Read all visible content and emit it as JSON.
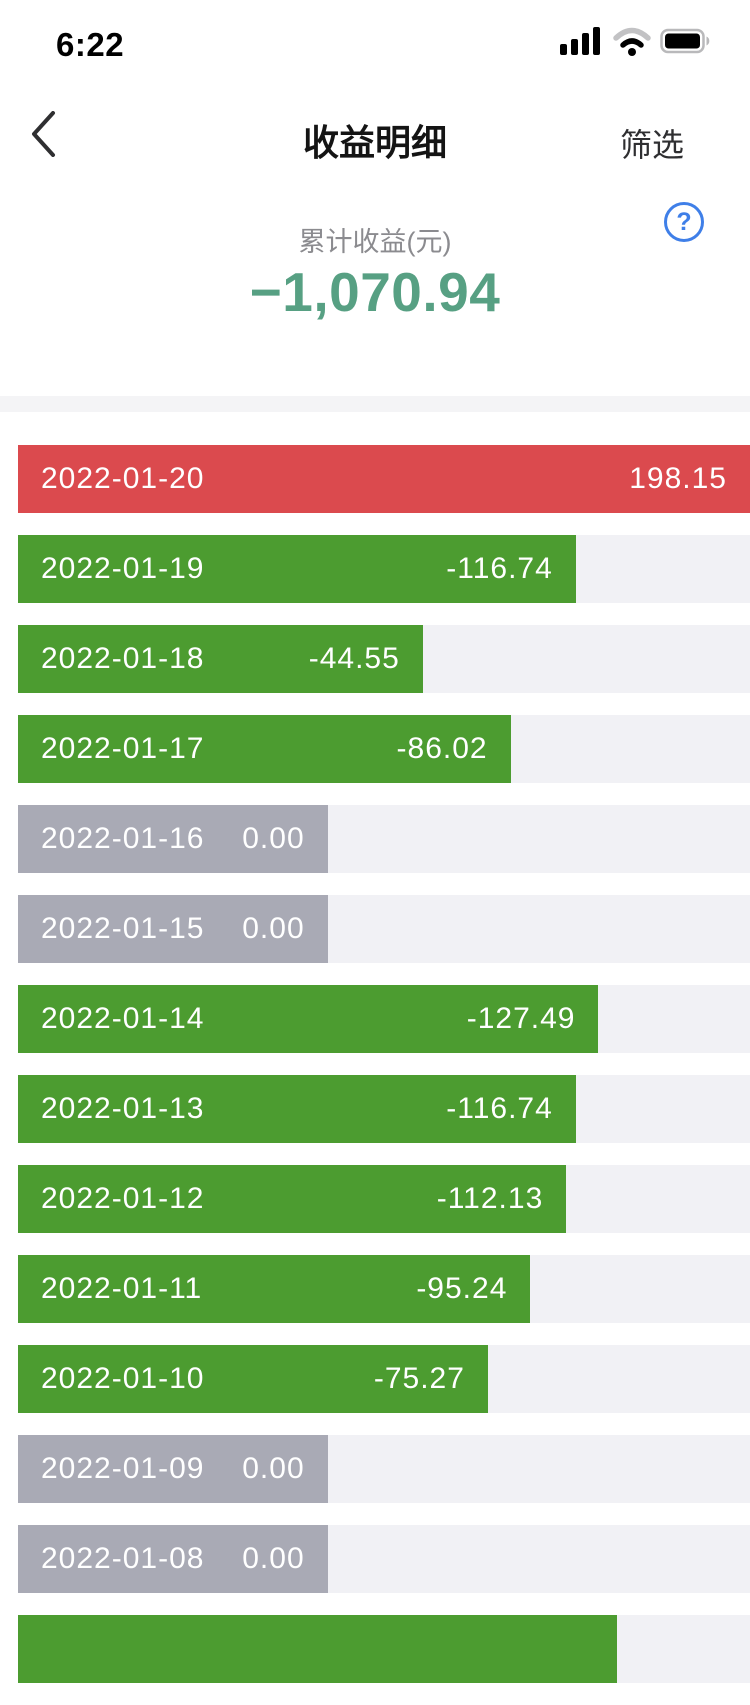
{
  "status_bar": {
    "time": "6:22"
  },
  "nav": {
    "title": "收益明细",
    "filter_label": "筛选"
  },
  "summary": {
    "label": "累计收益(元)",
    "total": "−1,070.94",
    "help_glyph": "?"
  },
  "colors": {
    "positive_bar": "#db4a4e",
    "negative_bar": "#4c9c30",
    "zero_bar": "#a9aab5",
    "bar_track": "#f1f1f5",
    "total_text": "#57a083",
    "help_icon": "#3f7fe8"
  },
  "chart_data": {
    "type": "bar",
    "orientation": "horizontal",
    "title": "收益明细",
    "unit": "元",
    "legend": "red = positive gain, green = loss, gray = zero",
    "rows": [
      {
        "date": "2022-01-20",
        "value": 198.15,
        "display": "198.15",
        "color": "red",
        "bar_pct": 100
      },
      {
        "date": "2022-01-19",
        "value": -116.74,
        "display": "-116.74",
        "color": "green",
        "bar_pct": 76.2
      },
      {
        "date": "2022-01-18",
        "value": -44.55,
        "display": "-44.55",
        "color": "green",
        "bar_pct": 55.3
      },
      {
        "date": "2022-01-17",
        "value": -86.02,
        "display": "-86.02",
        "color": "green",
        "bar_pct": 67.3
      },
      {
        "date": "2022-01-16",
        "value": 0,
        "display": "0.00",
        "color": "gray",
        "bar_pct": 42.3
      },
      {
        "date": "2022-01-15",
        "value": 0,
        "display": "0.00",
        "color": "gray",
        "bar_pct": 42.3
      },
      {
        "date": "2022-01-14",
        "value": -127.49,
        "display": "-127.49",
        "color": "green",
        "bar_pct": 79.3
      },
      {
        "date": "2022-01-13",
        "value": -116.74,
        "display": "-116.74",
        "color": "green",
        "bar_pct": 76.2
      },
      {
        "date": "2022-01-12",
        "value": -112.13,
        "display": "-112.13",
        "color": "green",
        "bar_pct": 74.9
      },
      {
        "date": "2022-01-11",
        "value": -95.24,
        "display": "-95.24",
        "color": "green",
        "bar_pct": 70.0
      },
      {
        "date": "2022-01-10",
        "value": -75.27,
        "display": "-75.27",
        "color": "green",
        "bar_pct": 64.2
      },
      {
        "date": "2022-01-09",
        "value": 0,
        "display": "0.00",
        "color": "gray",
        "bar_pct": 42.3
      },
      {
        "date": "2022-01-08",
        "value": 0,
        "display": "0.00",
        "color": "gray",
        "bar_pct": 42.3
      },
      {
        "date": "",
        "display": "",
        "color": "green",
        "bar_pct": 81.8,
        "partial": true
      }
    ]
  }
}
